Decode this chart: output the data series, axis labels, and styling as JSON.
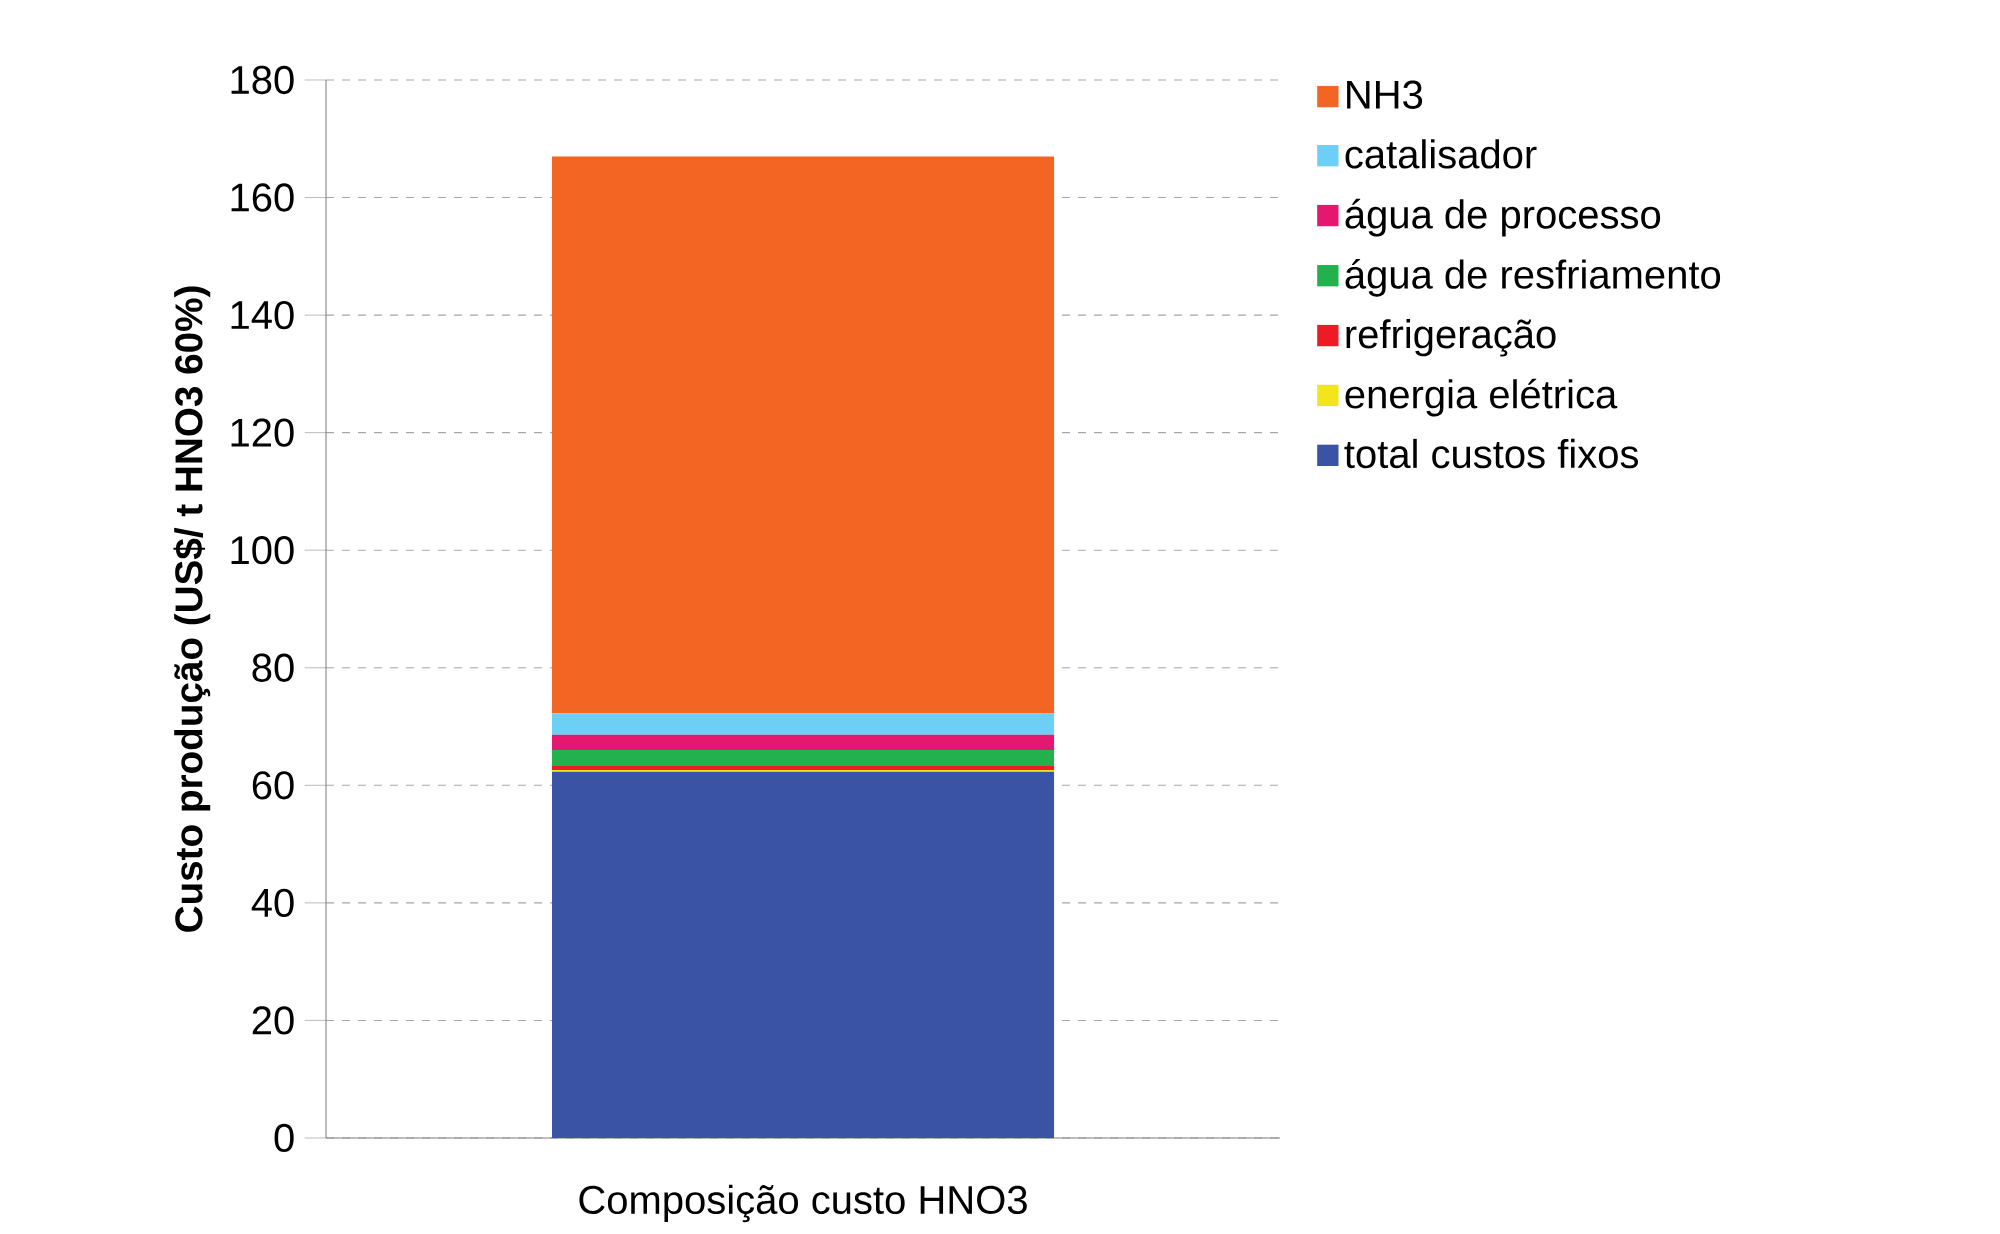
{
  "chart_data": {
    "type": "bar",
    "stacked": true,
    "ylabel": "Custo produção (US$/ t HNO3 60%)",
    "categories": [
      "Composição custo HNO3"
    ],
    "series": [
      {
        "name": "total custos fixos",
        "color": "#3a53a4",
        "values": [
          62.3
        ]
      },
      {
        "name": "energia elétrica",
        "color": "#f2e51b",
        "values": [
          0.3
        ]
      },
      {
        "name": "refrigeração",
        "color": "#ed1c24",
        "values": [
          0.8
        ]
      },
      {
        "name": "água de resfriamento",
        "color": "#22b14c",
        "values": [
          2.6
        ]
      },
      {
        "name": "água de processo",
        "color": "#e6176f",
        "values": [
          2.6
        ]
      },
      {
        "name": "catalisador",
        "color": "#6dcff6",
        "values": [
          3.6
        ]
      },
      {
        "name": "NH3",
        "color": "#f26522",
        "values": [
          94.8
        ]
      }
    ],
    "ylim": [
      0,
      180
    ],
    "yticks": [
      0,
      20,
      40,
      60,
      80,
      100,
      120,
      140,
      160,
      180
    ],
    "grid": "y",
    "legend": "right"
  }
}
